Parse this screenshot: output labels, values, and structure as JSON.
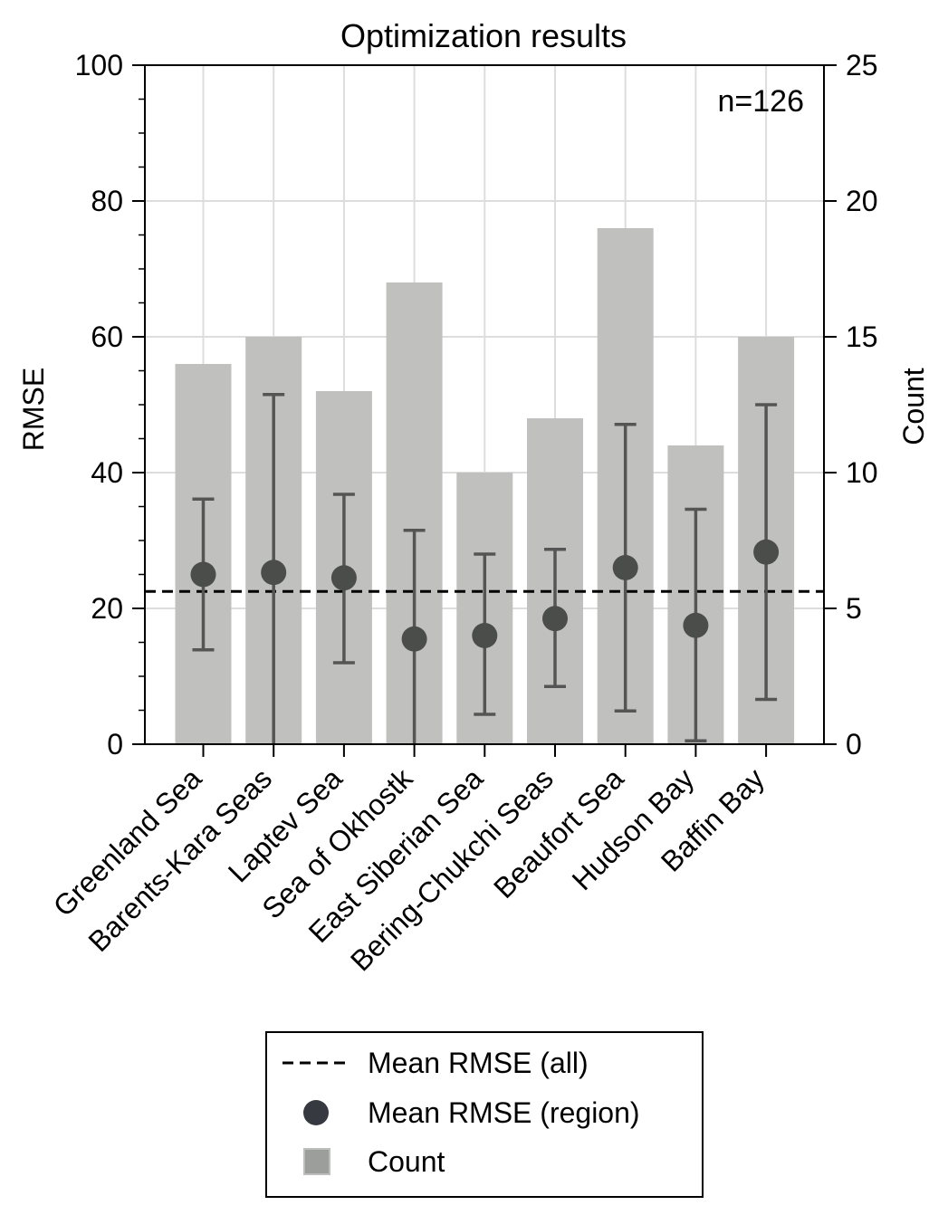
{
  "chart_data": {
    "type": "bar",
    "title": "Optimization results",
    "annotation": "n=126",
    "categories": [
      "Greenland Sea",
      "Barents-Kara Seas",
      "Laptev Sea",
      "Sea of Okhostk",
      "East Siberian Sea",
      "Bering-Chukchi Seas",
      "Beaufort Sea",
      "Hudson Bay",
      "Baffin Bay"
    ],
    "series": [
      {
        "name": "Count",
        "axis": "right",
        "kind": "bar",
        "values": [
          14,
          15,
          13,
          17,
          10,
          12,
          19,
          11,
          15
        ]
      },
      {
        "name": "Mean RMSE (region)",
        "axis": "left",
        "kind": "point-with-errorbar",
        "values": [
          25.0,
          25.3,
          24.5,
          15.5,
          16.0,
          18.5,
          26.0,
          17.5,
          28.3
        ],
        "error_low": [
          13.9,
          0.0,
          12.0,
          0.0,
          4.4,
          8.5,
          4.9,
          0.5,
          6.6
        ],
        "error_high": [
          36.1,
          51.5,
          36.8,
          31.5,
          28.0,
          28.7,
          47.1,
          34.6,
          50.0
        ]
      }
    ],
    "mean_line": {
      "name": "Mean RMSE (all)",
      "value": 22.5
    },
    "ylabel": "RMSE",
    "ylim": [
      0,
      100
    ],
    "yticks": [
      0,
      20,
      40,
      60,
      80,
      100
    ],
    "y2label": "Count",
    "y2lim": [
      0,
      25
    ],
    "y2ticks": [
      0,
      5,
      10,
      15,
      20,
      25
    ],
    "grid": true,
    "legend_position": "below",
    "legend": [
      {
        "label": "Mean RMSE (all)",
        "symbol": "dashed-line"
      },
      {
        "label": "Mean RMSE (region)",
        "symbol": "circle-marker"
      },
      {
        "label": "Count",
        "symbol": "square-patch"
      }
    ],
    "colors": {
      "bar": "#c0c0bf",
      "marker": "#4b4d4b",
      "errorbar": "#555555",
      "mean_line": "#000000",
      "legend_marker": "#363a40",
      "legend_patch": "#9c9e9b"
    }
  }
}
